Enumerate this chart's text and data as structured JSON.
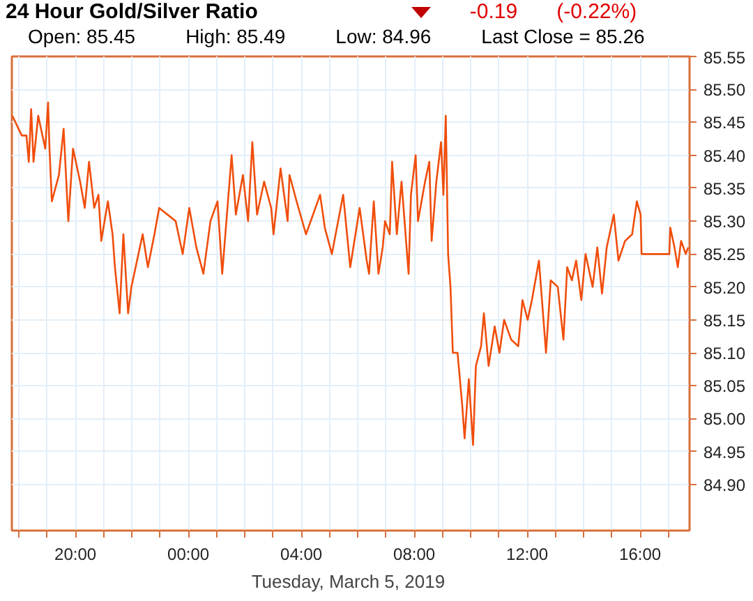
{
  "chart_data": {
    "type": "line",
    "title": "24 Hour Gold/Silver Ratio",
    "xlabel": "Tuesday, March  5, 2019",
    "annotations": [
      "-0.19",
      "(-0.22%)",
      "Open: 85.45",
      "High: 85.49",
      "Low: 84.96",
      "Last Close = 85.26"
    ],
    "xlim": [
      "2019-03-04T17:45",
      "2019-03-05T17:45"
    ],
    "xticks": [
      {
        "value": "2019-03-04T18:00",
        "label": null
      },
      {
        "value": "2019-03-04T19:00",
        "label": null
      },
      {
        "value": "2019-03-04T20:00",
        "label": "20:00"
      },
      {
        "value": "2019-03-04T21:00",
        "label": null
      },
      {
        "value": "2019-03-04T22:00",
        "label": null
      },
      {
        "value": "2019-03-04T23:00",
        "label": null
      },
      {
        "value": "2019-03-05T00:00",
        "label": "00:00"
      },
      {
        "value": "2019-03-05T01:00",
        "label": null
      },
      {
        "value": "2019-03-05T02:00",
        "label": null
      },
      {
        "value": "2019-03-05T03:00",
        "label": null
      },
      {
        "value": "2019-03-05T04:00",
        "label": "04:00"
      },
      {
        "value": "2019-03-05T05:00",
        "label": null
      },
      {
        "value": "2019-03-05T06:00",
        "label": null
      },
      {
        "value": "2019-03-05T07:00",
        "label": null
      },
      {
        "value": "2019-03-05T08:00",
        "label": "08:00"
      },
      {
        "value": "2019-03-05T09:00",
        "label": null
      },
      {
        "value": "2019-03-05T10:00",
        "label": null
      },
      {
        "value": "2019-03-05T11:00",
        "label": null
      },
      {
        "value": "2019-03-05T12:00",
        "label": "12:00"
      },
      {
        "value": "2019-03-05T13:00",
        "label": null
      },
      {
        "value": "2019-03-05T14:00",
        "label": null
      },
      {
        "value": "2019-03-05T15:00",
        "label": null
      },
      {
        "value": "2019-03-05T16:00",
        "label": "16:00"
      },
      {
        "value": "2019-03-05T17:00",
        "label": null
      }
    ],
    "ylim": [
      84.83,
      85.55
    ],
    "yticks": [
      {
        "value": 84.9,
        "label": "84.90"
      },
      {
        "value": 84.95,
        "label": "84.95"
      },
      {
        "value": 85.0,
        "label": "85.00"
      },
      {
        "value": 85.05,
        "label": "85.05"
      },
      {
        "value": 85.1,
        "label": "85.10"
      },
      {
        "value": 85.15,
        "label": "85.15"
      },
      {
        "value": 85.2,
        "label": "85.20"
      },
      {
        "value": 85.25,
        "label": "85.25"
      },
      {
        "value": 85.3,
        "label": "85.30"
      },
      {
        "value": 85.35,
        "label": "85.35"
      },
      {
        "value": 85.4,
        "label": "85.40"
      },
      {
        "value": 85.45,
        "label": "85.45"
      },
      {
        "value": 85.5,
        "label": "85.50"
      },
      {
        "value": 85.55,
        "label": "85.55"
      }
    ],
    "grid": true,
    "marker": "none",
    "line_style": "solid",
    "series": [
      {
        "color": "#f04e0c",
        "x": [
          "2019-03-04T17:46",
          "2019-03-04T18:06",
          "2019-03-04T18:16",
          "2019-03-04T18:21",
          "2019-03-04T18:26",
          "2019-03-04T18:31",
          "2019-03-04T18:41",
          "2019-03-04T18:56",
          "2019-03-04T19:02",
          "2019-03-04T19:05",
          "2019-03-04T19:10",
          "2019-03-04T19:25",
          "2019-03-04T19:35",
          "2019-03-04T19:45",
          "2019-03-04T19:55",
          "2019-03-04T20:10",
          "2019-03-04T20:20",
          "2019-03-04T20:29",
          "2019-03-04T20:40",
          "2019-03-04T20:49",
          "2019-03-04T20:55",
          "2019-03-04T21:09",
          "2019-03-04T21:19",
          "2019-03-04T21:24",
          "2019-03-04T21:34",
          "2019-03-04T21:42",
          "2019-03-04T21:52",
          "2019-03-04T21:59",
          "2019-03-04T22:14",
          "2019-03-04T22:23",
          "2019-03-04T22:34",
          "2019-03-04T22:48",
          "2019-03-04T22:58",
          "2019-03-04T23:33",
          "2019-03-04T23:48",
          "2019-03-05T00:02",
          "2019-03-05T00:17",
          "2019-03-05T00:32",
          "2019-03-05T00:47",
          "2019-03-05T01:02",
          "2019-03-05T01:12",
          "2019-03-05T01:32",
          "2019-03-05T01:41",
          "2019-03-05T01:56",
          "2019-03-05T02:07",
          "2019-03-05T02:16",
          "2019-03-05T02:26",
          "2019-03-05T02:41",
          "2019-03-05T02:56",
          "2019-03-05T03:01",
          "2019-03-05T03:16",
          "2019-03-05T03:31",
          "2019-03-05T03:35",
          "2019-03-05T03:50",
          "2019-03-05T04:10",
          "2019-03-05T04:40",
          "2019-03-05T04:50",
          "2019-03-05T05:05",
          "2019-03-05T05:29",
          "2019-03-05T05:44",
          "2019-03-05T06:04",
          "2019-03-05T06:19",
          "2019-03-05T06:24",
          "2019-03-05T06:34",
          "2019-03-05T06:44",
          "2019-03-05T06:53",
          "2019-03-05T06:58",
          "2019-03-05T07:08",
          "2019-03-05T07:13",
          "2019-03-05T07:23",
          "2019-03-05T07:33",
          "2019-03-05T07:48",
          "2019-03-05T07:53",
          "2019-03-05T08:03",
          "2019-03-05T08:08",
          "2019-03-05T08:23",
          "2019-03-05T08:32",
          "2019-03-05T08:37",
          "2019-03-05T08:47",
          "2019-03-05T08:57",
          "2019-03-05T09:02",
          "2019-03-05T09:07",
          "2019-03-05T09:12",
          "2019-03-05T09:17",
          "2019-03-05T09:22",
          "2019-03-05T09:32",
          "2019-03-05T09:42",
          "2019-03-05T09:47",
          "2019-03-05T09:56",
          "2019-03-05T10:05",
          "2019-03-05T10:11",
          "2019-03-05T10:22",
          "2019-03-05T10:28",
          "2019-03-05T10:38",
          "2019-03-05T10:51",
          "2019-03-05T11:01",
          "2019-03-05T11:11",
          "2019-03-05T11:26",
          "2019-03-05T11:41",
          "2019-03-05T11:50",
          "2019-03-05T12:01",
          "2019-03-05T12:10",
          "2019-03-05T12:25",
          "2019-03-05T12:40",
          "2019-03-05T12:50",
          "2019-03-05T13:05",
          "2019-03-05T13:17",
          "2019-03-05T13:25",
          "2019-03-05T13:35",
          "2019-03-05T13:44",
          "2019-03-05T13:55",
          "2019-03-05T14:04",
          "2019-03-05T14:19",
          "2019-03-05T14:29",
          "2019-03-05T14:39",
          "2019-03-05T14:49",
          "2019-03-05T15:04",
          "2019-03-05T15:14",
          "2019-03-05T15:28",
          "2019-03-05T15:43",
          "2019-03-05T15:53",
          "2019-03-05T16:01",
          "2019-03-05T16:03",
          "2019-03-05T17:02",
          "2019-03-05T17:04",
          "2019-03-05T17:13",
          "2019-03-05T17:20",
          "2019-03-05T17:27",
          "2019-03-05T17:37",
          "2019-03-05T17:42"
        ],
        "values": [
          85.46,
          85.43,
          85.43,
          85.39,
          85.47,
          85.39,
          85.46,
          85.41,
          85.48,
          85.41,
          85.33,
          85.37,
          85.44,
          85.3,
          85.41,
          85.36,
          85.32,
          85.39,
          85.32,
          85.34,
          85.27,
          85.33,
          85.28,
          85.23,
          85.16,
          85.28,
          85.16,
          85.2,
          85.25,
          85.28,
          85.23,
          85.28,
          85.32,
          85.3,
          85.25,
          85.32,
          85.26,
          85.22,
          85.3,
          85.33,
          85.22,
          85.4,
          85.31,
          85.37,
          85.3,
          85.42,
          85.31,
          85.36,
          85.32,
          85.28,
          85.38,
          85.3,
          85.37,
          85.33,
          85.28,
          85.34,
          85.29,
          85.25,
          85.34,
          85.23,
          85.32,
          85.24,
          85.22,
          85.33,
          85.22,
          85.26,
          85.3,
          85.28,
          85.39,
          85.28,
          85.36,
          85.22,
          85.34,
          85.4,
          85.3,
          85.36,
          85.39,
          85.27,
          85.36,
          85.42,
          85.34,
          85.46,
          85.25,
          85.2,
          85.1,
          85.1,
          85.02,
          84.97,
          85.06,
          84.96,
          85.08,
          85.11,
          85.16,
          85.08,
          85.14,
          85.1,
          85.15,
          85.12,
          85.11,
          85.18,
          85.15,
          85.18,
          85.24,
          85.1,
          85.21,
          85.2,
          85.12,
          85.23,
          85.21,
          85.24,
          85.18,
          85.25,
          85.2,
          85.26,
          85.19,
          85.26,
          85.31,
          85.24,
          85.27,
          85.28,
          85.33,
          85.31,
          85.25,
          85.25,
          85.29,
          85.26,
          85.23,
          85.27,
          85.25,
          85.26
        ]
      }
    ]
  }
}
